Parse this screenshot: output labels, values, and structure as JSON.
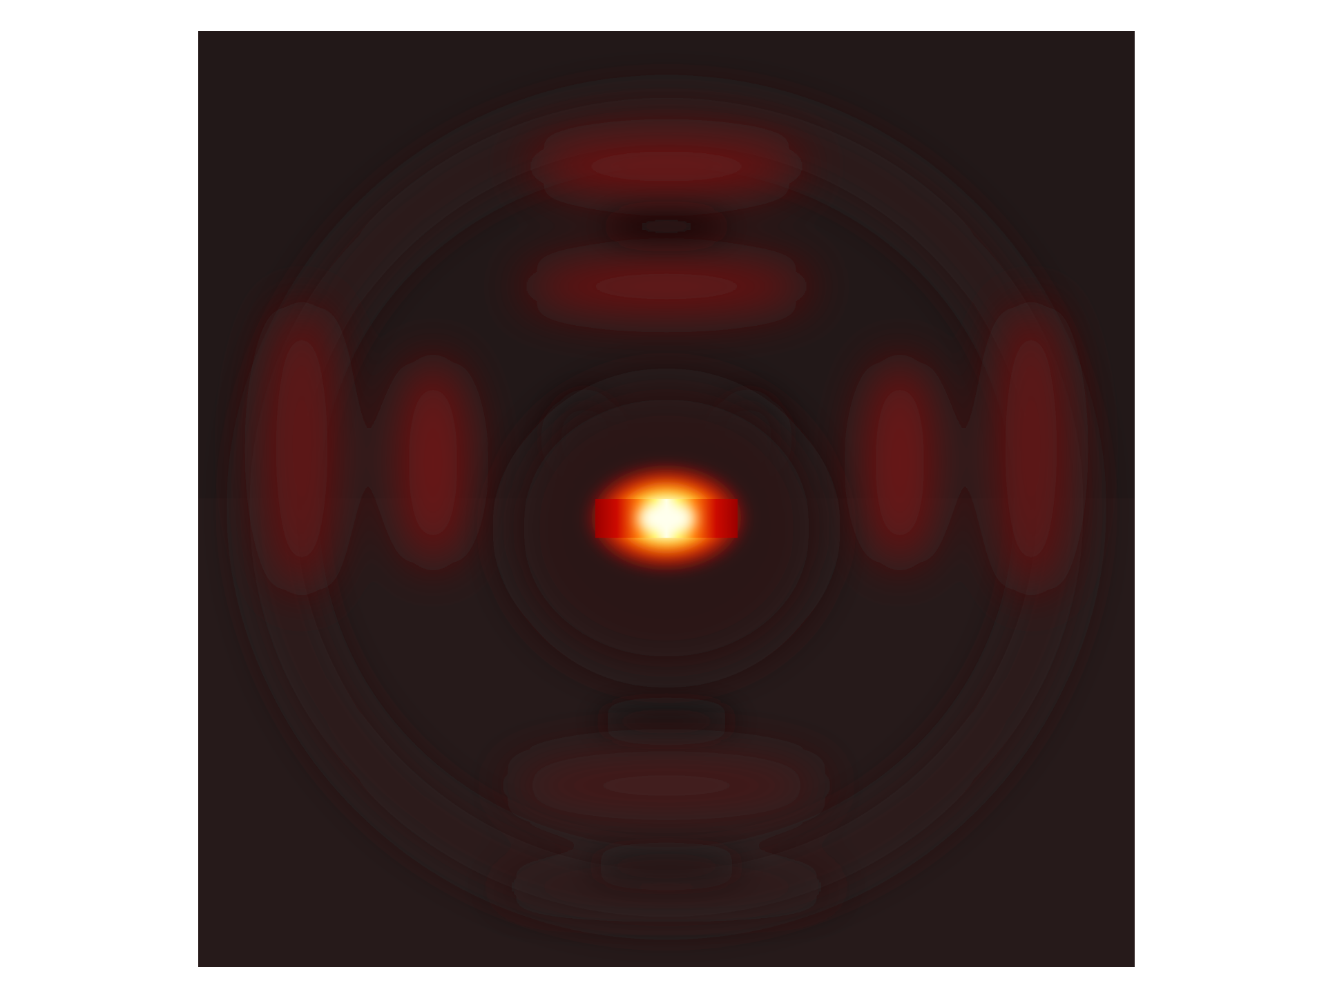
{
  "figure": {
    "type": "field-intensity-map",
    "colormap": "hot",
    "colors": {
      "background": "#221818",
      "lower_half": "#261a1a",
      "node_dark": "#1a1212",
      "lobe": "#7a1a1a",
      "lobe_lower": "#4a1c1c",
      "source_core": "#ffffff",
      "source_mid": "#ffee33",
      "source_outer": "#ff2200",
      "source_edge": "#aa0000"
    },
    "source": {
      "shape": "rectangle",
      "label": ""
    },
    "pattern": {
      "description_visible": false,
      "upper_lobes": 2,
      "side_lobes_per_side": 2,
      "lower_lobes": 1
    }
  }
}
